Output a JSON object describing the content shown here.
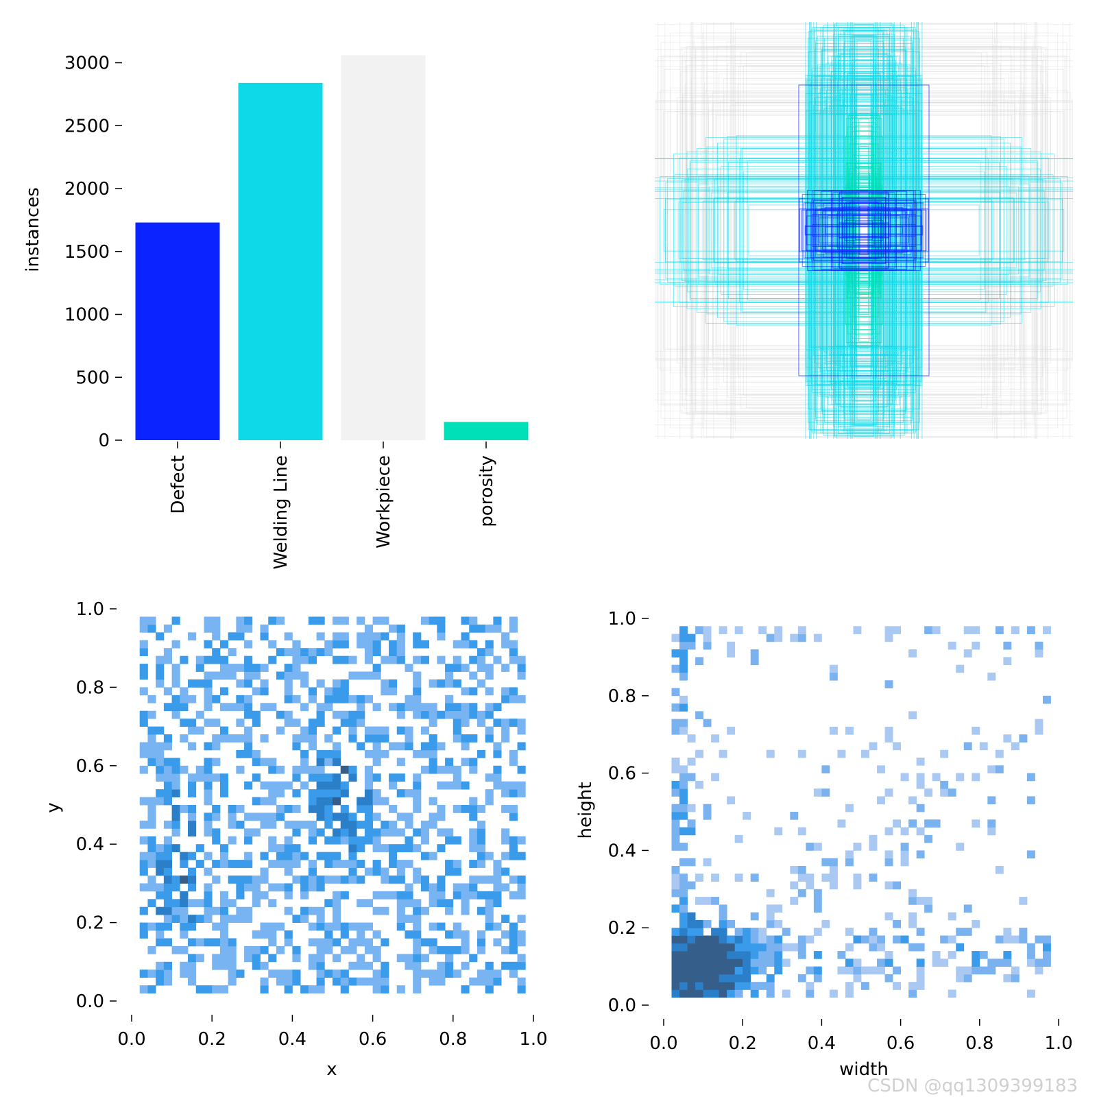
{
  "chart_data": [
    {
      "type": "bar",
      "title": "",
      "xlabel": "",
      "ylabel": "instances",
      "categories": [
        "Defect",
        "Welding Line",
        "Workpiece",
        "porosity"
      ],
      "values": [
        1730,
        2840,
        3060,
        145
      ],
      "colors": [
        "#0a23ff",
        "#0dd9e8",
        "#f2f2f2",
        "#00e0b8"
      ],
      "ylim": [
        0,
        3150
      ],
      "yticks": [
        "0",
        "500",
        "1000",
        "1500",
        "2000",
        "2500",
        "3000"
      ],
      "ytick_values": [
        0,
        500,
        1000,
        1500,
        2000,
        2500,
        3000
      ]
    },
    {
      "type": "scatter",
      "title": "",
      "description": "overlay of normalized label bounding boxes, each centered at (0.5, 0.5)",
      "class_colors": {
        "Defect": "#0a23ff",
        "Welding Line": "#0dd9e8",
        "Workpiece": "#d8d8d8",
        "porosity": "#00e0b8"
      },
      "xlim": [
        0,
        1
      ],
      "ylim": [
        0,
        1
      ]
    },
    {
      "type": "heatmap",
      "title": "",
      "xlabel": "x",
      "ylabel": "y",
      "xlim": [
        0,
        1
      ],
      "ylim": [
        0,
        1
      ],
      "bins": 50,
      "xticks": [
        "0.0",
        "0.2",
        "0.4",
        "0.6",
        "0.8",
        "1.0"
      ],
      "yticks": [
        "0.0",
        "0.2",
        "0.4",
        "0.6",
        "0.8",
        "1.0"
      ],
      "tick_values": [
        0,
        0.2,
        0.4,
        0.6,
        0.8,
        1.0
      ],
      "palette": [
        "#79b4f2",
        "#3a9bea",
        "#2b7fc8",
        "#355f8a"
      ]
    },
    {
      "type": "heatmap",
      "title": "",
      "xlabel": "width",
      "ylabel": "height",
      "xlim": [
        0,
        1
      ],
      "ylim": [
        0,
        1
      ],
      "bins": 50,
      "xticks": [
        "0.0",
        "0.2",
        "0.4",
        "0.6",
        "0.8",
        "1.0"
      ],
      "yticks": [
        "0.0",
        "0.2",
        "0.4",
        "0.6",
        "0.8",
        "1.0"
      ],
      "tick_values": [
        0,
        0.2,
        0.4,
        0.6,
        0.8,
        1.0
      ],
      "palette": [
        "#a9c8f2",
        "#7ab2f0",
        "#3a9bea",
        "#2b7fc8",
        "#355f8a"
      ]
    }
  ],
  "watermark": "CSDN @qq1309399183"
}
